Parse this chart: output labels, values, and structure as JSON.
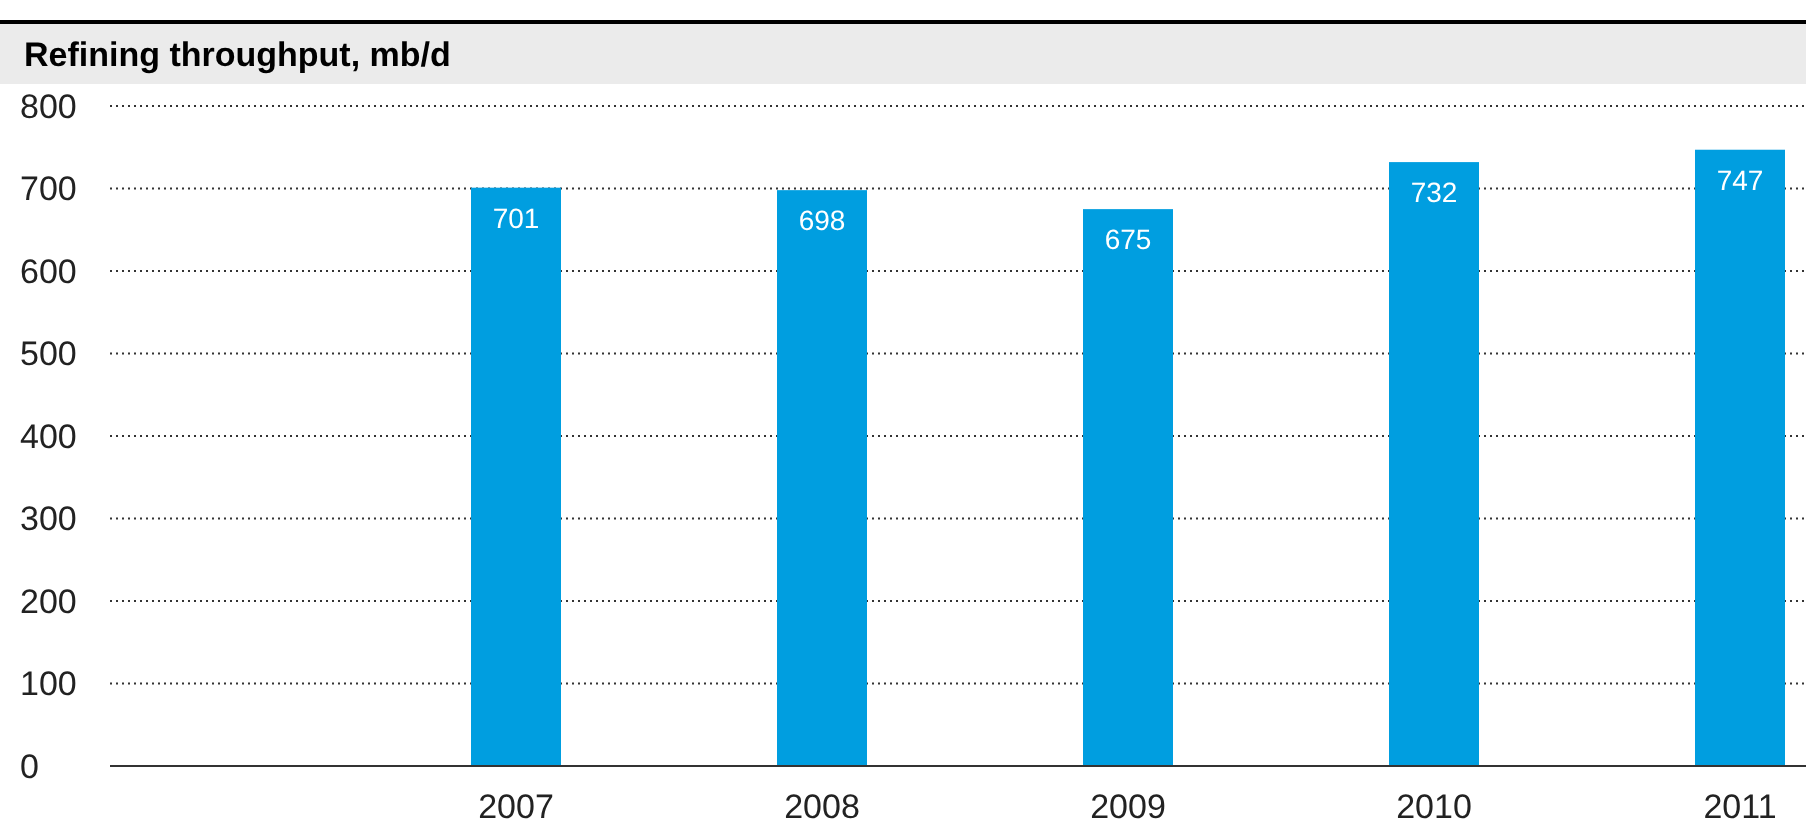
{
  "chart_data": {
    "type": "bar",
    "title": "Refining throughput, mb/d",
    "categories": [
      null,
      "2007",
      "2008",
      "2009",
      "2010",
      "2011"
    ],
    "values": [
      null,
      701,
      698,
      675,
      732,
      747
    ],
    "color": "#009ee0",
    "ylim": [
      0,
      800
    ],
    "yticks": [
      0,
      100,
      200,
      300,
      400,
      500,
      600,
      700,
      800
    ],
    "grid": "y",
    "data_labels": true
  }
}
